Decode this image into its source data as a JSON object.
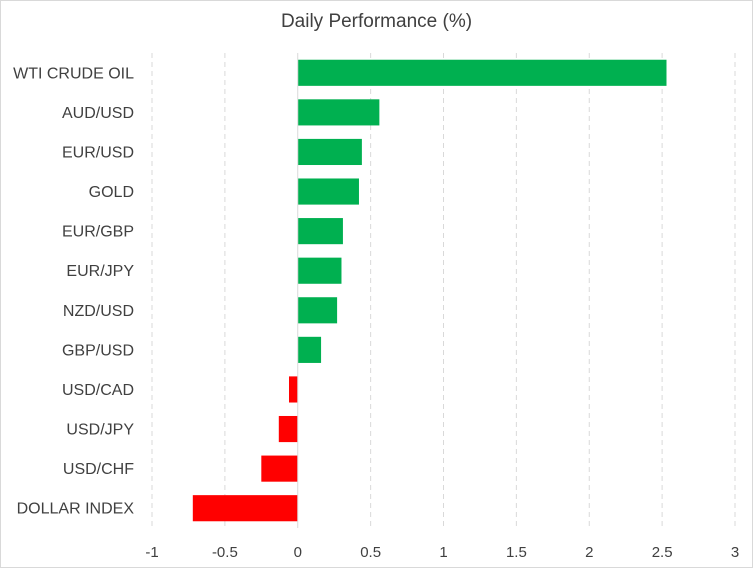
{
  "chart_data": {
    "type": "bar",
    "orientation": "horizontal",
    "title": "Daily Performance (%)",
    "xlabel": "",
    "ylabel": "",
    "categories": [
      "WTI CRUDE OIL",
      "AUD/USD",
      "EUR/USD",
      "GOLD",
      "EUR/GBP",
      "EUR/JPY",
      "NZD/USD",
      "GBP/USD",
      "USD/CAD",
      "USD/JPY",
      "USD/CHF",
      "DOLLAR INDEX"
    ],
    "values": [
      2.53,
      0.56,
      0.44,
      0.42,
      0.31,
      0.3,
      0.27,
      0.16,
      -0.06,
      -0.13,
      -0.25,
      -0.72
    ],
    "xlim": [
      -1,
      3
    ],
    "xticks": [
      -1,
      -0.5,
      0,
      0.5,
      1,
      1.5,
      2,
      2.5,
      3
    ],
    "xtick_labels": [
      "-1",
      "-0.5",
      "0",
      "0.5",
      "1",
      "1.5",
      "2",
      "2.5",
      "3"
    ],
    "grid": "vertical dashed",
    "legend": "none",
    "colors": {
      "positive": "#00b050",
      "negative": "#ff0000"
    }
  }
}
